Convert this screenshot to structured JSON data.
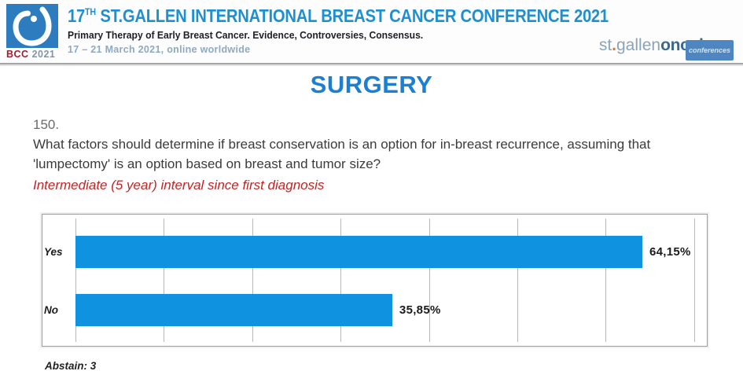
{
  "header": {
    "logo": {
      "bcc": "BCC",
      "year": "2021",
      "square_color": "#2e7cc0"
    },
    "title": {
      "number": "17",
      "ordinal": "TH",
      "rest": " ST.GALLEN INTERNATIONAL BREAST CANCER CONFERENCE 2021"
    },
    "subtitle": "Primary Therapy of Early Breast Cancer. Evidence, Controversies, Consensus.",
    "dates": "17 – 21 March 2021, online worldwide",
    "brand": {
      "st": "st",
      "dot": ".",
      "gallen": "gallen",
      "oncology": "oncology",
      "conferences": "conferences",
      "dot_color": "#e0762e",
      "oncology_color": "#3a688f"
    }
  },
  "page_title": "SURGERY",
  "question": {
    "number": "150.",
    "text": "What factors should determine if breast conservation is an option for in-breast recurrence, assuming that 'lumpectomy' is an option based on breast and tumor size?",
    "subline": "Intermediate (5 year) interval since first diagnosis",
    "subline_color": "#c32424"
  },
  "chart_data": {
    "type": "bar",
    "orientation": "horizontal",
    "categories": [
      "Yes",
      "No"
    ],
    "values": [
      64.15,
      35.85
    ],
    "value_labels": [
      "64,15%",
      "35,85%"
    ],
    "xlim": [
      0,
      71
    ],
    "gridlines": [
      0,
      10,
      20,
      30,
      40,
      50,
      60,
      70
    ],
    "grid": true,
    "legend": false,
    "bar_color": "#0f93e0",
    "title": "",
    "xlabel": "",
    "ylabel": ""
  },
  "footer": {
    "abstain": "Abstain: 3"
  },
  "colors": {
    "header_title_blue": "#1e90d2",
    "surgery_blue": "#1b7fd2",
    "bar_blue": "#0f93e0",
    "question_red": "#c32424",
    "bcc_red": "#a11d33",
    "dates_blue_gray": "#8fa9c0"
  }
}
